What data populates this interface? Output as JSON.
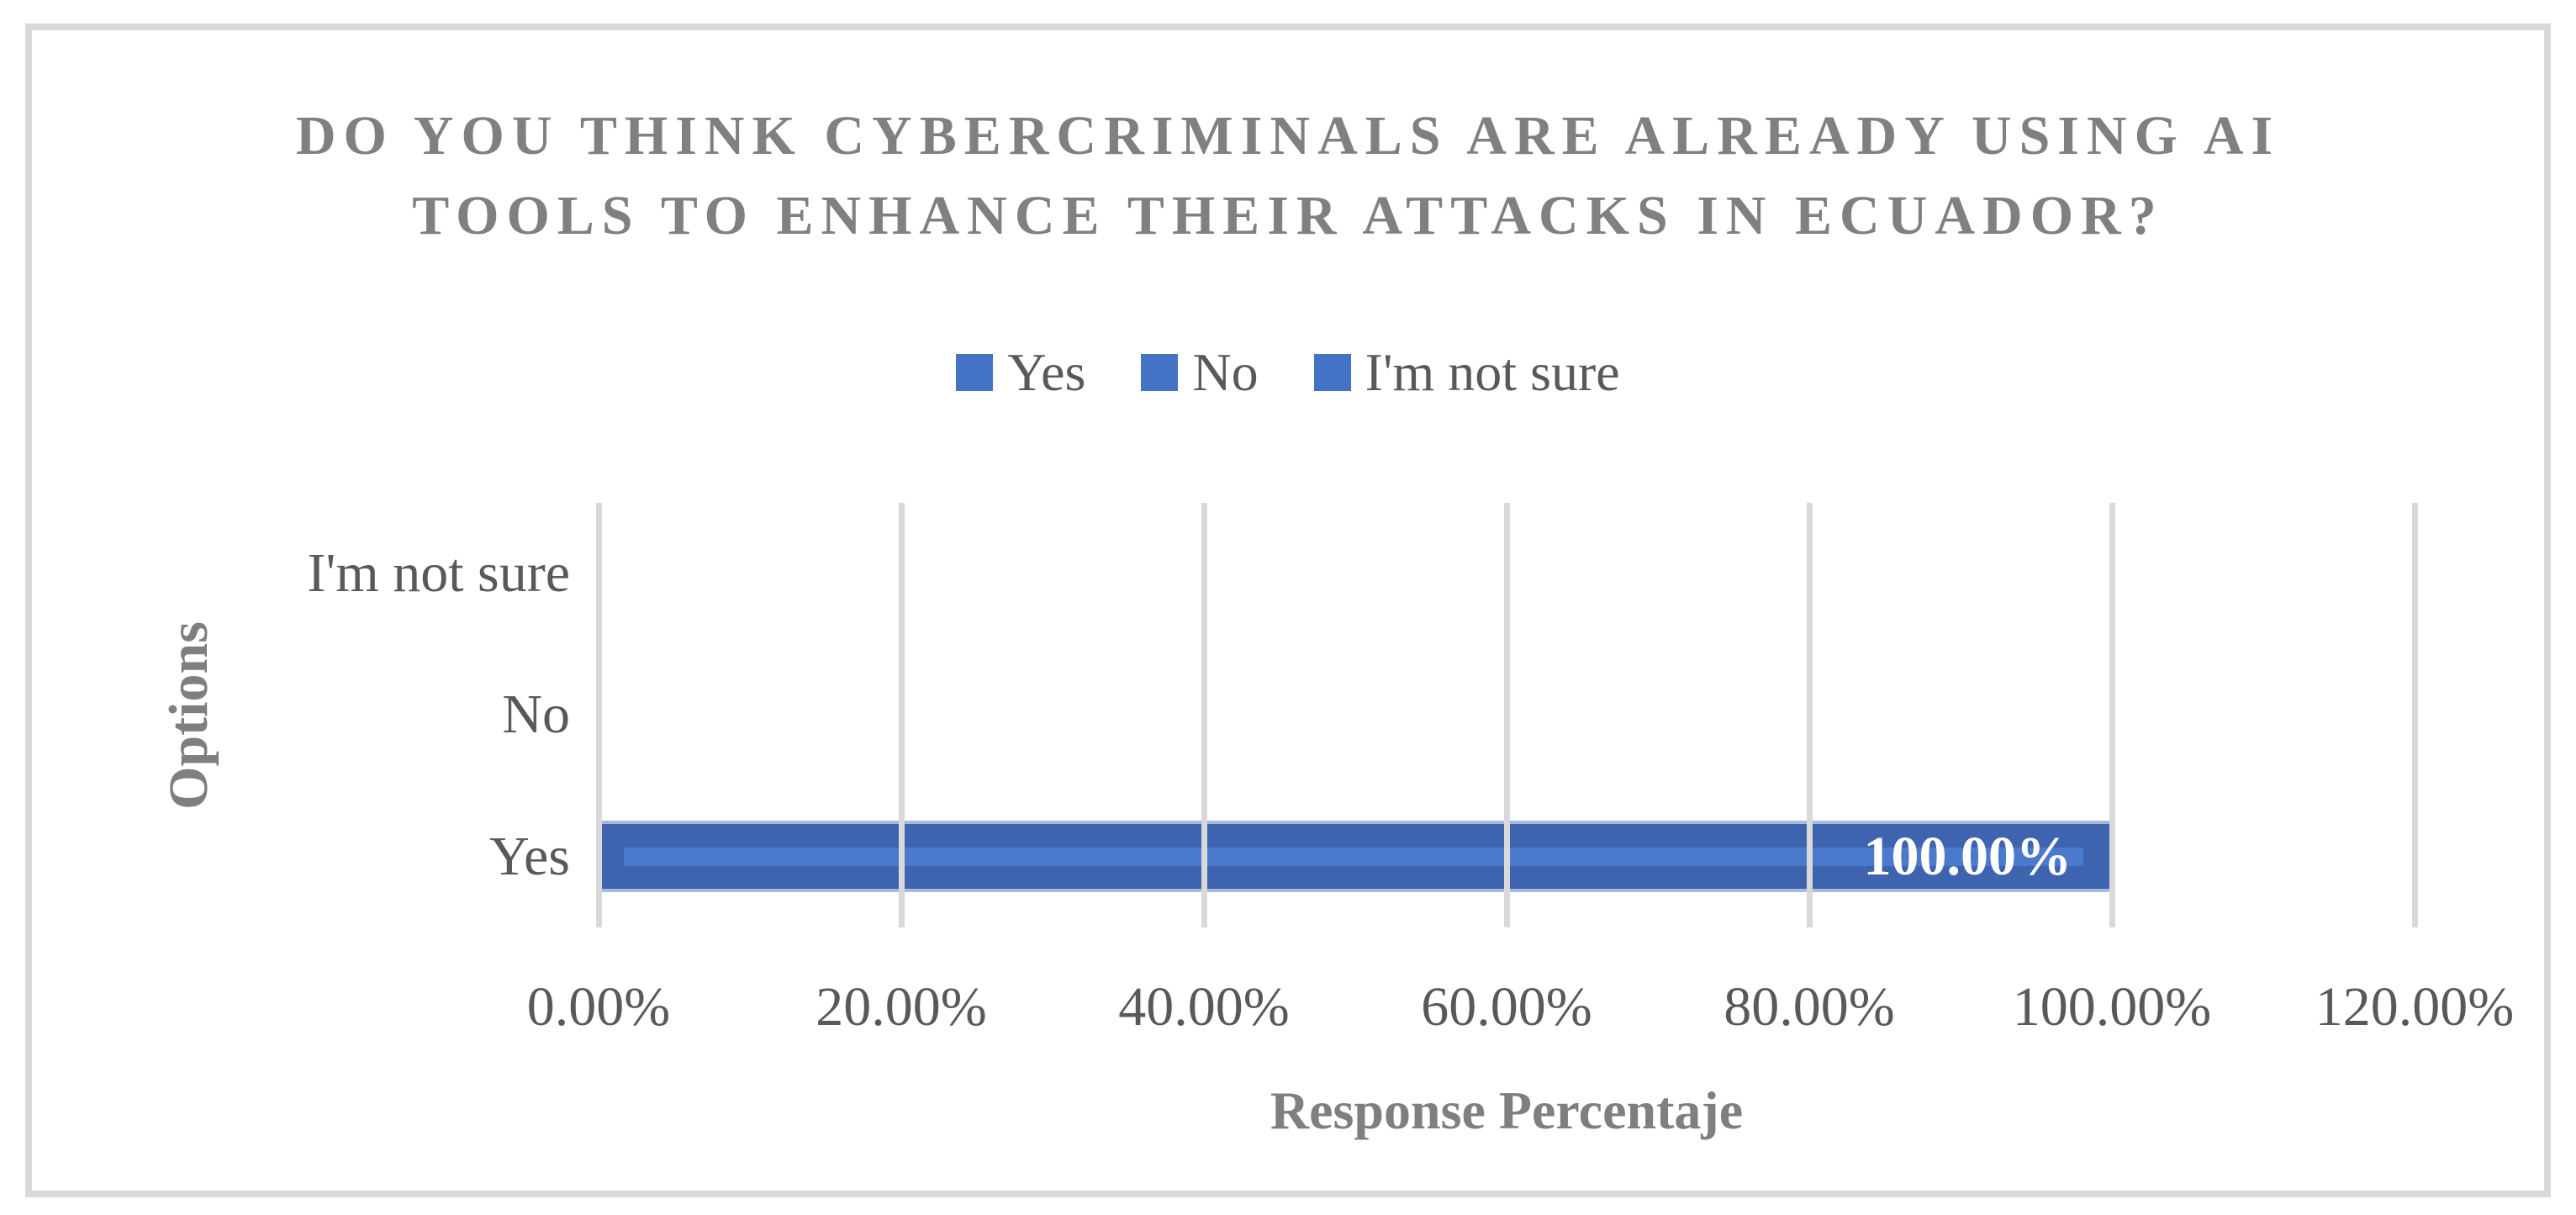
{
  "figure": {
    "background": "#FFFFFF",
    "border_color": "#D9D9D9"
  },
  "chart_data": {
    "type": "bar",
    "orientation": "horizontal",
    "title": "DO YOU THINK CYBERCRIMINALS ARE ALREADY USING AI TOOLS TO ENHANCE THEIR ATTACKS IN ECUADOR?",
    "title_lines": [
      "DO YOU THINK CYBERCRIMINALS ARE ALREADY USING AI",
      "TOOLS TO ENHANCE THEIR ATTACKS IN ECUADOR?"
    ],
    "legend": [
      "Yes",
      "No",
      "I'm not sure"
    ],
    "legend_position": "top",
    "categories_top_to_bottom": [
      "I'm not sure",
      "No",
      "Yes"
    ],
    "values_top_to_bottom": [
      0,
      0,
      100
    ],
    "data_labels_top_to_bottom": [
      "",
      "",
      "100.00%"
    ],
    "xlabel": "Response Percentaje",
    "ylabel": "Options",
    "x_ticks": [
      "0.00%",
      "20.00%",
      "40.00%",
      "60.00%",
      "80.00%",
      "100.00%",
      "120.00%"
    ],
    "xlim": [
      0,
      120
    ],
    "grid": true,
    "colors": {
      "legend_marker": "#4472C4",
      "bar_fill": "#3E64AF",
      "bar_stripe": "#4B79CB",
      "bar_edge": "#A6BADD",
      "data_label_text": "#FFFFFF",
      "gridline": "#D9D9D9",
      "title_text": "#808080",
      "axis_title_text": "#7F7F7F",
      "tick_text": "#595959"
    }
  }
}
